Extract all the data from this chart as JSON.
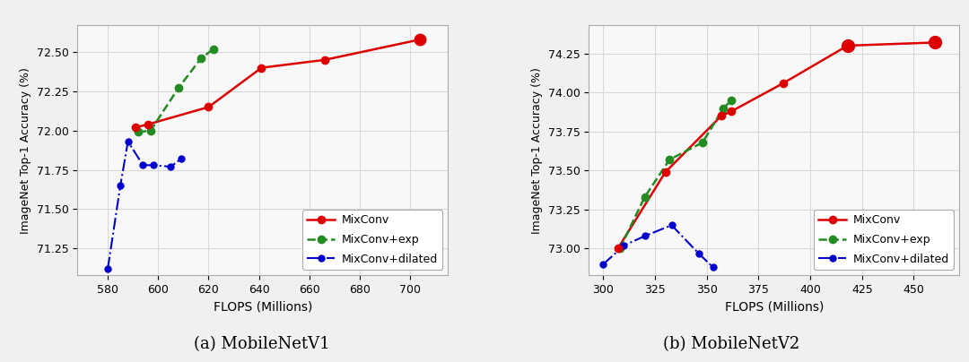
{
  "chart1": {
    "title": "(a) MobileNetV1",
    "xlabel": "FLOPS (Millions)",
    "ylabel": "ImageNet Top-1 Accuracy (%)",
    "xlim": [
      568,
      715
    ],
    "ylim": [
      71.08,
      72.67
    ],
    "xticks": [
      580,
      600,
      620,
      640,
      660,
      680,
      700
    ],
    "yticks": [
      71.25,
      71.5,
      71.75,
      72.0,
      72.25,
      72.5
    ],
    "mixconv": {
      "x": [
        591,
        596,
        620,
        641,
        666,
        704
      ],
      "y": [
        72.02,
        72.04,
        72.15,
        72.4,
        72.45,
        72.58
      ],
      "color": "#dd0000",
      "linestyle": "-",
      "marker": "o",
      "markersize": [
        6,
        6,
        6,
        6,
        6,
        9
      ]
    },
    "mixconv_exp": {
      "x": [
        592,
        597,
        608,
        617,
        622
      ],
      "y": [
        71.99,
        72.0,
        72.27,
        72.46,
        72.52
      ],
      "color": "#228B22",
      "linestyle": "--",
      "marker": "o",
      "markersize": 6
    },
    "mixconv_dilated": {
      "x": [
        580,
        585,
        588,
        594,
        598,
        605,
        609
      ],
      "y": [
        71.12,
        71.65,
        71.93,
        71.78,
        71.78,
        71.77,
        71.82
      ],
      "color": "#0000cc",
      "linestyle": "-.",
      "marker": "o",
      "markersize": 5
    }
  },
  "chart2": {
    "title": "(b) MobileNetV2",
    "xlabel": "FLOPS (Millions)",
    "ylabel": "ImageNet Top-1 Accuracy (%)",
    "xlim": [
      293,
      472
    ],
    "ylim": [
      72.83,
      74.43
    ],
    "xticks": [
      300,
      325,
      350,
      375,
      400,
      425,
      450
    ],
    "yticks": [
      73.0,
      73.25,
      73.5,
      73.75,
      74.0,
      74.25
    ],
    "mixconv": {
      "x": [
        307,
        330,
        357,
        362,
        387,
        418,
        460
      ],
      "y": [
        73.0,
        73.49,
        73.85,
        73.88,
        74.06,
        74.3,
        74.32
      ],
      "color": "#dd0000",
      "linestyle": "-",
      "marker": "o",
      "markersize": [
        6,
        6,
        6,
        6,
        6,
        10,
        10
      ]
    },
    "mixconv_exp": {
      "x": [
        308,
        320,
        332,
        348,
        358,
        362
      ],
      "y": [
        73.0,
        73.33,
        73.57,
        73.68,
        73.9,
        73.95
      ],
      "color": "#228B22",
      "linestyle": "--",
      "marker": "o",
      "markersize": 6
    },
    "mixconv_dilated": {
      "x": [
        300,
        310,
        320,
        333,
        346,
        353
      ],
      "y": [
        72.9,
        73.02,
        73.08,
        73.15,
        72.97,
        72.88
      ],
      "color": "#0000cc",
      "linestyle": "-.",
      "marker": "o",
      "markersize": 5
    }
  },
  "legend_labels": [
    "MixConv",
    "MixConv+exp",
    "MixConv+dilated"
  ],
  "bg_color": "#f0f0f0",
  "plot_bg_color": "#f8f8f8",
  "grid_color": "#d8d8d8"
}
